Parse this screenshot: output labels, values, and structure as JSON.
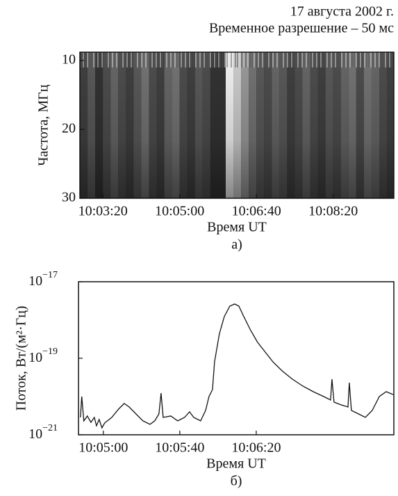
{
  "chart_data": [
    {
      "type": "spectrogram",
      "title": "17 августа 2002 г.",
      "subtitle": "Временное разрешение – 50 мс",
      "ylabel": "Частота, МГц",
      "xlabel": "Время UT",
      "panel_label": "а)",
      "xlim": [
        36170,
        36579
      ],
      "xticks": [
        {
          "value": 36200,
          "label": "10:03:20"
        },
        {
          "value": 36300,
          "label": "10:05:00"
        },
        {
          "value": 36400,
          "label": "10:06:40"
        },
        {
          "value": 36500,
          "label": "10:08:20"
        }
      ],
      "ylim": [
        8.8,
        30
      ],
      "y_inverted": true,
      "yticks": [
        10,
        20,
        30
      ],
      "x": [
        36175,
        36185,
        36195,
        36205,
        36215,
        36225,
        36235,
        36245,
        36255,
        36265,
        36275,
        36285,
        36295,
        36305,
        36315,
        36325,
        36335,
        36345,
        36355,
        36365,
        36375,
        36385,
        36395,
        36405,
        36415,
        36425,
        36435,
        36445,
        36455,
        36465,
        36475,
        36485,
        36495,
        36505,
        36515,
        36525,
        36535,
        36545,
        36555,
        36565,
        36575
      ],
      "values": [
        0.25,
        0.35,
        0.2,
        0.3,
        0.4,
        0.3,
        0.25,
        0.35,
        0.45,
        0.3,
        0.25,
        0.4,
        0.45,
        0.3,
        0.25,
        0.35,
        0.3,
        0.2,
        0.2,
        0.95,
        0.8,
        0.6,
        0.45,
        0.35,
        0.3,
        0.4,
        0.35,
        0.25,
        0.3,
        0.4,
        0.3,
        0.25,
        0.35,
        0.3,
        0.4,
        0.45,
        0.3,
        0.45,
        0.4,
        0.3,
        0.25
      ]
    },
    {
      "type": "line",
      "ylabel": "Поток, Вт/(м²·Гц)",
      "xlabel": "Время UT",
      "panel_label": "б)",
      "log_y": true,
      "color": "#111111",
      "xlim": [
        36287,
        36452
      ],
      "xticks": [
        {
          "value": 36300,
          "label": "10:05:00"
        },
        {
          "value": 36340,
          "label": "10:05:40"
        },
        {
          "value": 36380,
          "label": "10:06:20"
        }
      ],
      "ylim": [
        1e-21,
        1e-17
      ],
      "yticks": [
        {
          "value": 1e-17,
          "label": "10−17"
        },
        {
          "value": 1e-19,
          "label": "10−19"
        },
        {
          "value": 1e-21,
          "label": "10−21"
        }
      ],
      "x": [
        36288.0,
        36288.7,
        36289.8,
        36291.6,
        36293.5,
        36295.3,
        36296.4,
        36297.8,
        36299.3,
        36300.7,
        36304.4,
        36308.0,
        36310.9,
        36313.5,
        36317.1,
        36320.7,
        36324.4,
        36326.9,
        36329.1,
        36330.2,
        36331.3,
        36335.3,
        36338.9,
        36342.5,
        36345.1,
        36347.3,
        36350.9,
        36353.5,
        36355.3,
        36357.1,
        36358.2,
        36360.7,
        36363.3,
        36366.2,
        36368.7,
        36370.9,
        36373.5,
        36377.1,
        36380.7,
        36384.4,
        36388.7,
        36393.5,
        36398.9,
        36404.4,
        36409.8,
        36415.3,
        36418.9,
        36419.6,
        36420.7,
        36424.4,
        36428.0,
        36428.7,
        36429.8,
        36433.5,
        36437.1,
        36440.7,
        36444.4,
        36448.0,
        36451.6
      ],
      "values": [
        2.85e-21,
        1e-20,
        2.31e-21,
        3.1e-21,
        2.12e-21,
        2.85e-21,
        1.72e-21,
        2.51e-21,
        1.52e-21,
        2.04e-21,
        2.85e-21,
        4.71e-21,
        6.58e-21,
        5.33e-21,
        3.51e-21,
        2.31e-21,
        1.87e-21,
        2.31e-21,
        3.51e-21,
        1.23e-20,
        2.85e-21,
        3.1e-21,
        2.31e-21,
        2.85e-21,
        3.98e-21,
        2.85e-21,
        2.31e-21,
        4.33e-21,
        1e-20,
        1.52e-20,
        8.11e-20,
        4.33e-19,
        1.23e-18,
        2.31e-18,
        2.62e-18,
        2.31e-18,
        1.23e-18,
        5.33e-19,
        2.62e-19,
        1.52e-19,
        8.11e-20,
        4.71e-20,
        2.85e-20,
        1.87e-20,
        1.34e-20,
        1e-20,
        8.11e-21,
        2.85e-20,
        7.16e-21,
        6.05e-21,
        5.33e-21,
        2.31e-20,
        4.33e-21,
        3.51e-21,
        2.85e-21,
        4.33e-21,
        1e-20,
        1.34e-20,
        1.13e-20
      ]
    }
  ]
}
